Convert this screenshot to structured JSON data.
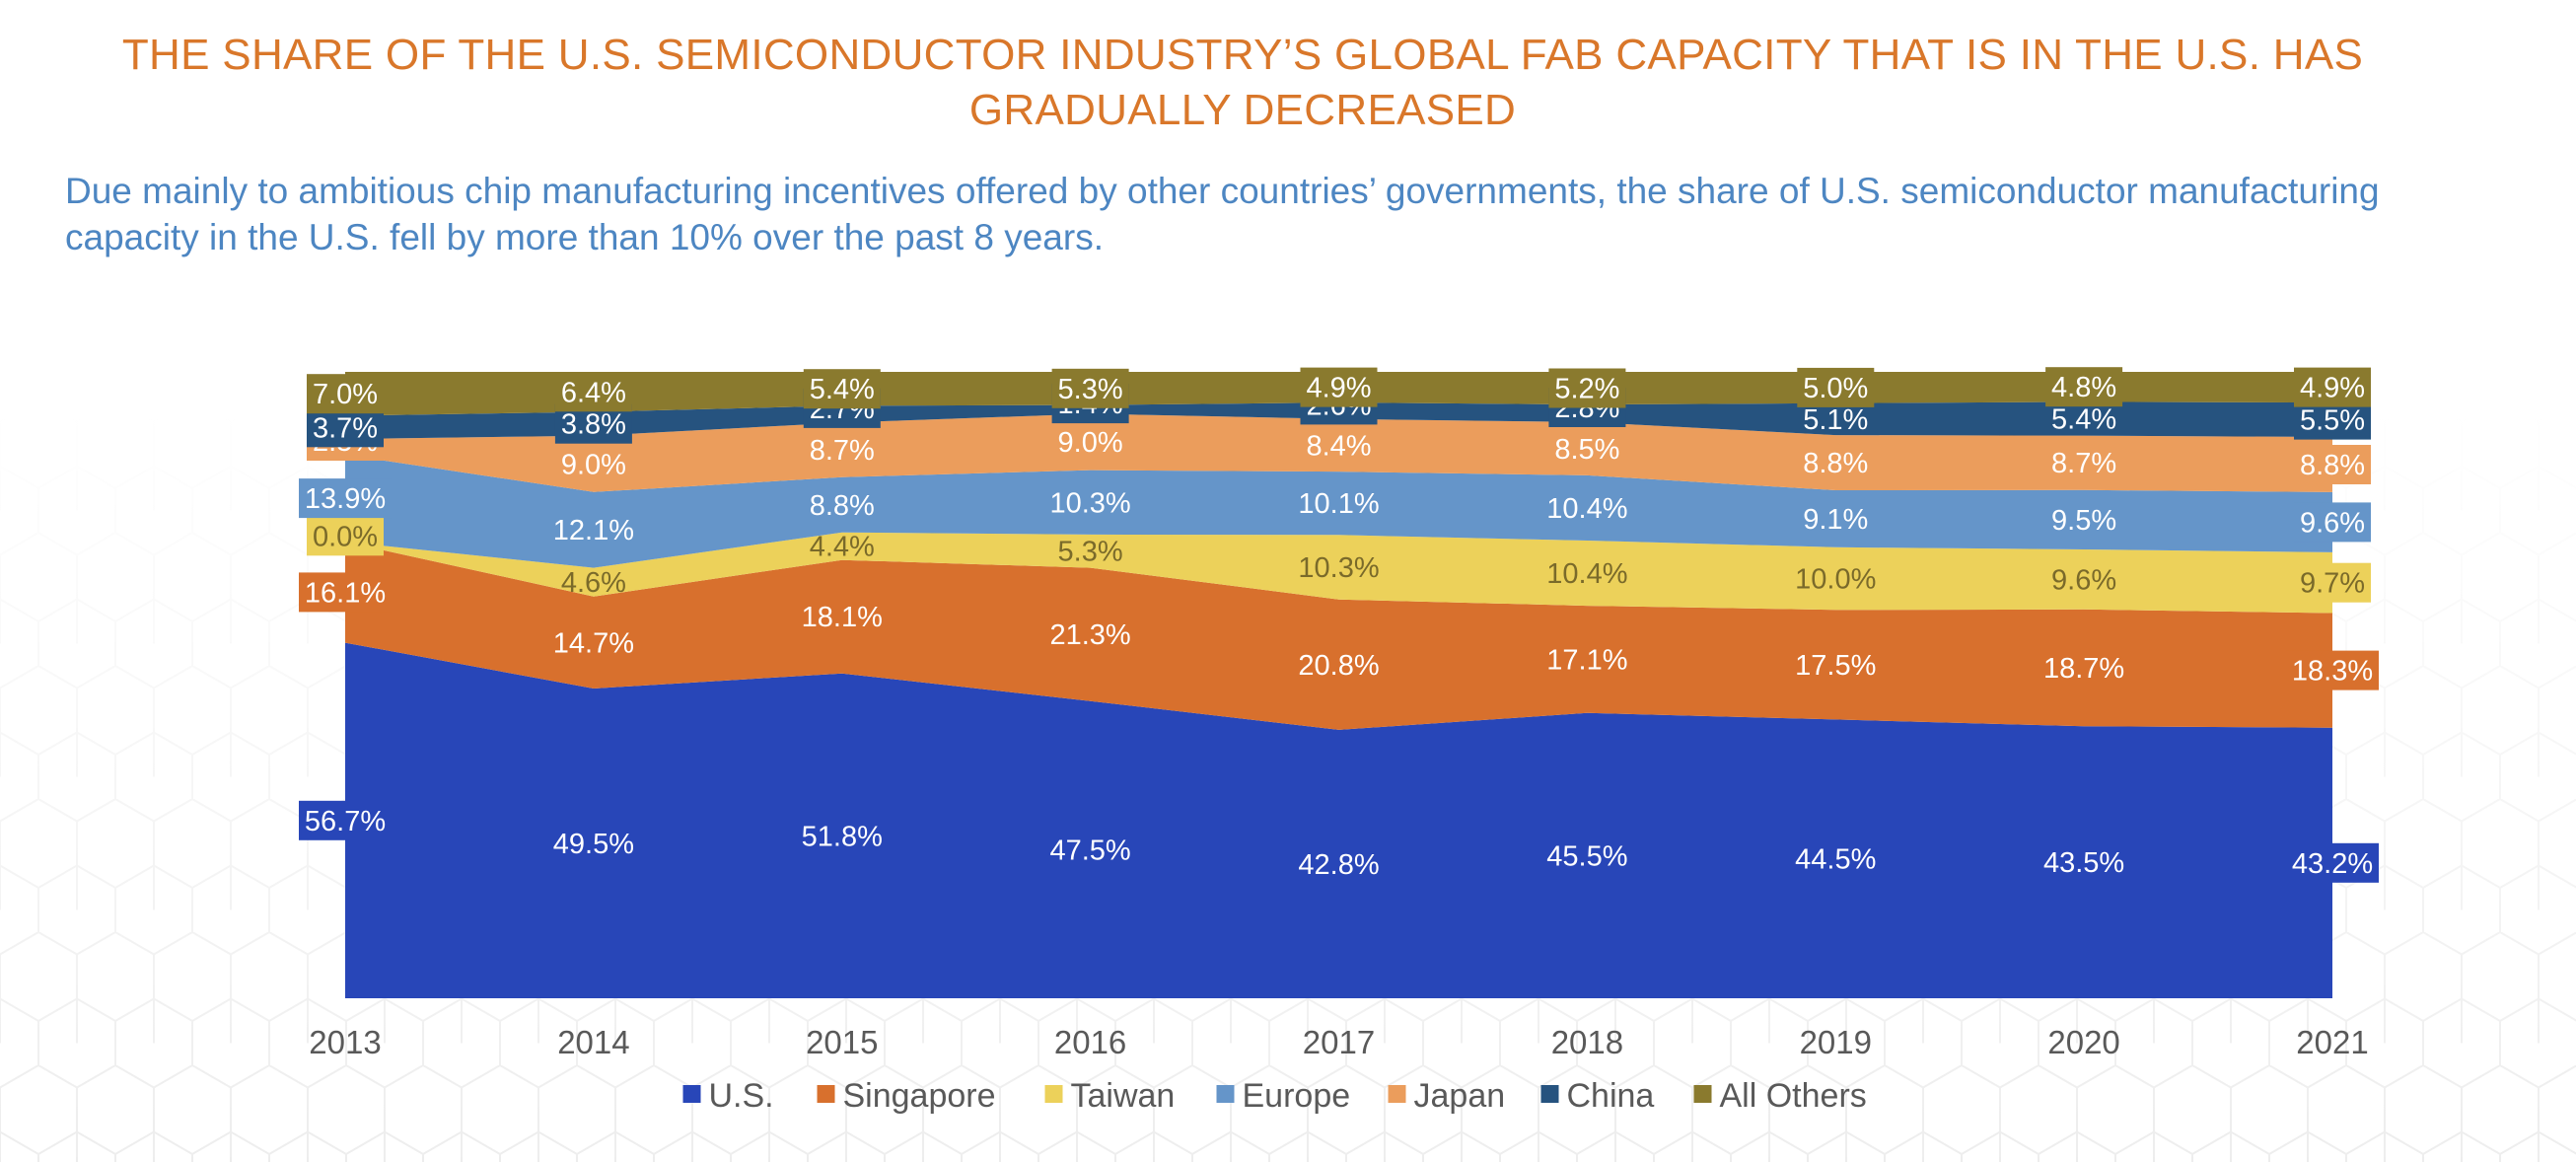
{
  "title": "THE SHARE OF THE U.S. SEMICONDUCTOR INDUSTRY’S GLOBAL FAB CAPACITY THAT IS IN THE U.S. HAS GRADUALLY DECREASED",
  "subtitle": "Due mainly to ambitious chip manufacturing incentives offered by other countries’ governments, the share of U.S. semiconductor manufacturing capacity in the U.S. fell by more than 10% over the past 8 years.",
  "colors": {
    "title": "#d9772a",
    "subtitle": "#4d86c2"
  },
  "chart_data": {
    "type": "area",
    "stacked": true,
    "normalized": true,
    "title": "THE SHARE OF THE U.S. SEMICONDUCTOR INDUSTRY’S GLOBAL FAB CAPACITY THAT IS IN THE U.S. HAS GRADUALLY DECREASED",
    "xlabel": "",
    "ylabel": "",
    "unit": "%",
    "categories": [
      "2013",
      "2014",
      "2015",
      "2016",
      "2017",
      "2018",
      "2019",
      "2020",
      "2021"
    ],
    "legend_position": "bottom",
    "series": [
      {
        "name": "U.S.",
        "color": "#2846b8",
        "label_color": "#ffffff",
        "values": [
          56.7,
          49.5,
          51.8,
          47.5,
          42.8,
          45.5,
          44.5,
          43.5,
          43.2
        ]
      },
      {
        "name": "Singapore",
        "color": "#d8702d",
        "label_color": "#ffffff",
        "values": [
          16.1,
          14.7,
          18.1,
          21.3,
          20.8,
          17.1,
          17.5,
          18.7,
          18.3
        ]
      },
      {
        "name": "Taiwan",
        "color": "#ecd15a",
        "label_color": "#7a6a2a",
        "values": [
          0.0,
          4.6,
          4.4,
          5.3,
          10.3,
          10.4,
          10.0,
          9.6,
          9.7
        ]
      },
      {
        "name": "Europe",
        "color": "#6595c9",
        "label_color": "#ffffff",
        "values": [
          13.9,
          12.1,
          8.8,
          10.3,
          10.1,
          10.4,
          9.1,
          9.5,
          9.6
        ]
      },
      {
        "name": "Japan",
        "color": "#eb9d5c",
        "label_color": "#ffffff",
        "values": [
          2.5,
          9.0,
          8.7,
          9.0,
          8.4,
          8.5,
          8.8,
          8.7,
          8.8
        ]
      },
      {
        "name": "China",
        "color": "#26537f",
        "label_color": "#ffffff",
        "values": [
          3.7,
          3.8,
          2.7,
          1.4,
          2.6,
          2.8,
          5.1,
          5.4,
          5.5
        ]
      },
      {
        "name": "All Others",
        "color": "#8a7a2e",
        "label_color": "#ffffff",
        "values": [
          7.0,
          6.4,
          5.4,
          5.3,
          4.9,
          5.2,
          5.0,
          4.8,
          4.9
        ]
      }
    ]
  }
}
